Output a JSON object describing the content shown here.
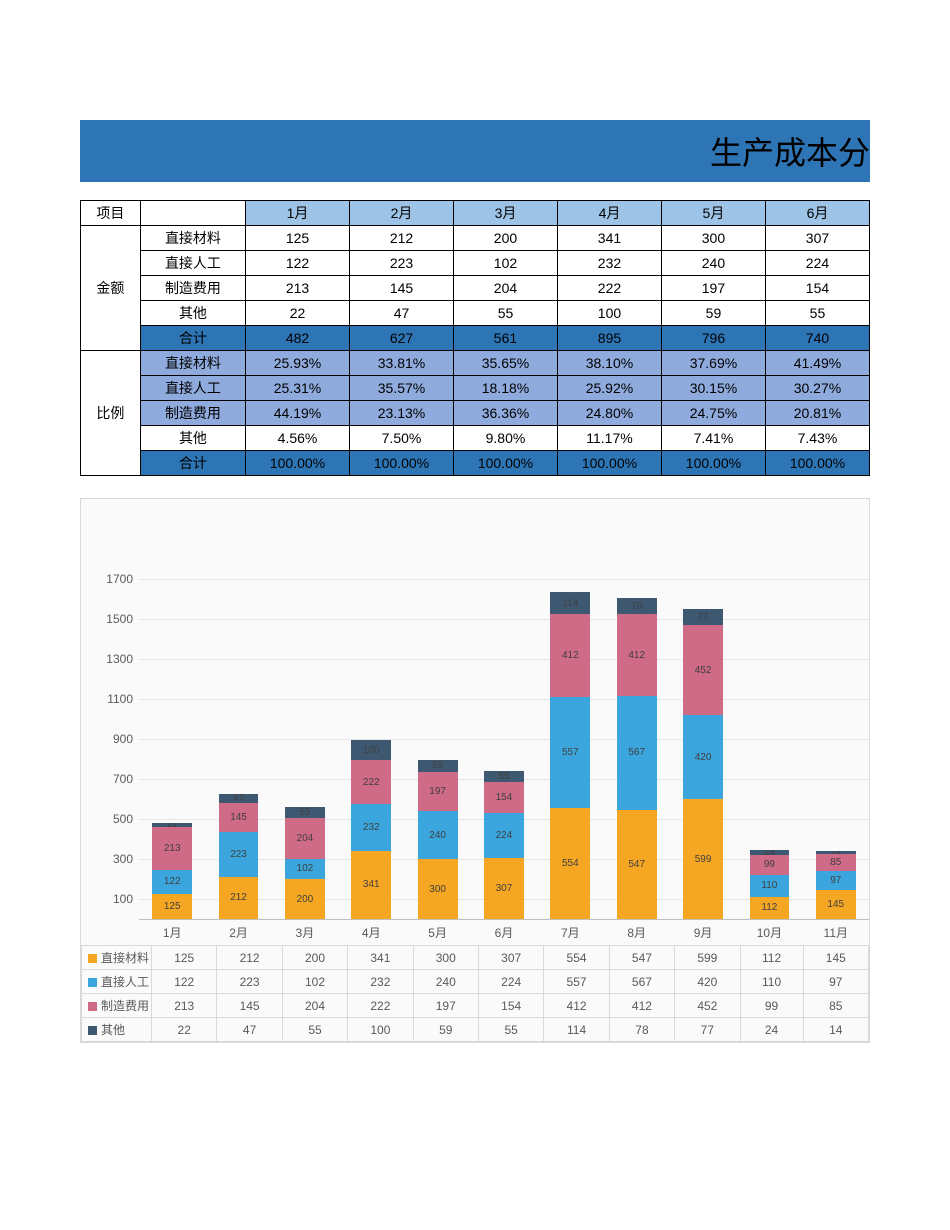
{
  "title": "生产成本分",
  "months": [
    "1月",
    "2月",
    "3月",
    "4月",
    "5月",
    "6月"
  ],
  "all_months": [
    "1月",
    "2月",
    "3月",
    "4月",
    "5月",
    "6月",
    "7月",
    "8月",
    "9月",
    "10月",
    "11月"
  ],
  "row_labels": {
    "project": "项目",
    "amount": "金额",
    "ratio": "比例",
    "sum": "合计"
  },
  "series_names": [
    "直接材料",
    "直接人工",
    "制造费用",
    "其他"
  ],
  "amount": {
    "直接材料": [
      125,
      212,
      200,
      341,
      300,
      307
    ],
    "直接人工": [
      122,
      223,
      102,
      232,
      240,
      224
    ],
    "制造费用": [
      213,
      145,
      204,
      222,
      197,
      154
    ],
    "其他": [
      22,
      47,
      55,
      100,
      59,
      55
    ],
    "合计": [
      482,
      627,
      561,
      895,
      796,
      740
    ]
  },
  "ratio": {
    "直接材料": [
      "25.93%",
      "33.81%",
      "35.65%",
      "38.10%",
      "37.69%",
      "41.49%"
    ],
    "直接人工": [
      "25.31%",
      "35.57%",
      "18.18%",
      "25.92%",
      "30.15%",
      "30.27%"
    ],
    "制造费用": [
      "44.19%",
      "23.13%",
      "36.36%",
      "24.80%",
      "24.75%",
      "20.81%"
    ],
    "其他": [
      "4.56%",
      "7.50%",
      "9.80%",
      "11.17%",
      "7.41%",
      "7.43%"
    ],
    "合计": [
      "100.00%",
      "100.00%",
      "100.00%",
      "100.00%",
      "100.00%",
      "100.00%"
    ]
  },
  "chart": {
    "type": "stacked-bar",
    "ylim": [
      0,
      1800
    ],
    "yticks": [
      100,
      300,
      500,
      700,
      900,
      1100,
      1300,
      1500,
      1700
    ],
    "grid_color": "#e6e6e6",
    "background_color": "#fafafa",
    "label_fontsize": 12,
    "seg_fontsize": 10,
    "bar_width": 0.6,
    "series": [
      {
        "name": "直接材料",
        "color": "#f5a623",
        "values": [
          125,
          212,
          200,
          341,
          300,
          307,
          554,
          547,
          599,
          112,
          145
        ]
      },
      {
        "name": "直接人工",
        "color": "#3aa6dd",
        "values": [
          122,
          223,
          102,
          232,
          240,
          224,
          557,
          567,
          420,
          110,
          97
        ]
      },
      {
        "name": "制造费用",
        "color": "#cf6a87",
        "values": [
          213,
          145,
          204,
          222,
          197,
          154,
          412,
          412,
          452,
          99,
          85
        ]
      },
      {
        "name": "其他",
        "color": "#3e5871",
        "values": [
          22,
          47,
          55,
          100,
          59,
          55,
          114,
          78,
          77,
          24,
          14
        ]
      }
    ]
  },
  "colors": {
    "title_bg": "#2e75b6",
    "month_hdr_bg": "#9dc3e6",
    "total_row_bg": "#2e75b6",
    "pct_row_bg": "#8faadc",
    "border": "#000000"
  }
}
